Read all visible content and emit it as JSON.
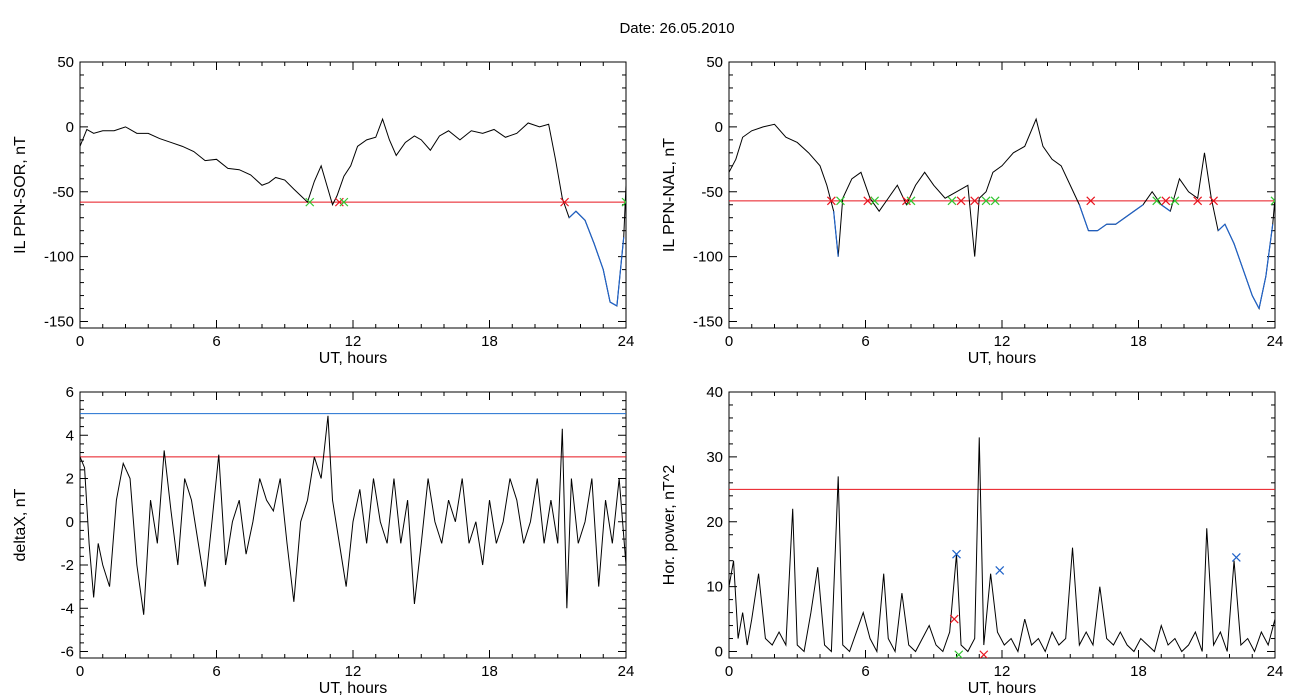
{
  "header": {
    "title": "Date:  26.05.2010"
  },
  "colors": {
    "trace": "#000000",
    "threshold": "#e8141e",
    "upper": "#1f6fd0",
    "below": "#1f62c8",
    "cross_red": "#e8141e",
    "cross_green": "#2fc62f",
    "cross_blue": "#1f62c8"
  },
  "chart_data": [
    {
      "type": "line",
      "xlabel": "UT, hours",
      "ylabel": "IL PPN-SOR, nT",
      "xlim": [
        0,
        24
      ],
      "ylim": [
        -155,
        50
      ],
      "xticks": [
        0,
        6,
        12,
        18,
        24
      ],
      "yticks": [
        50,
        0,
        -50,
        -100,
        -150
      ],
      "threshold": -58,
      "series": [
        {
          "x": [
            0,
            0.3,
            0.6,
            1.0,
            1.5,
            2.0,
            2.5,
            3.0,
            3.5,
            4.0,
            4.5,
            5.0,
            5.5,
            6.0,
            6.5,
            7.0,
            7.5,
            8.0,
            8.3,
            8.6,
            9.0,
            9.4,
            9.7,
            10.0,
            10.3,
            10.6,
            10.9,
            11.1,
            11.3,
            11.6,
            11.9,
            12.2,
            12.6,
            13.0,
            13.3,
            13.6,
            13.9,
            14.3,
            14.7,
            15.0,
            15.4,
            15.8,
            16.2,
            16.7,
            17.2,
            17.7,
            18.2,
            18.7,
            19.2,
            19.7,
            20.2,
            20.6,
            20.9,
            21.2,
            21.5,
            21.8,
            22.2,
            22.6,
            23.0,
            23.3,
            23.6,
            23.9,
            24.0
          ],
          "y": [
            -15,
            -2,
            -5,
            -3,
            -3,
            0,
            -5,
            -5,
            -9,
            -12,
            -15,
            -19,
            -26,
            -25,
            -32,
            -33,
            -37,
            -45,
            -43,
            -39,
            -41,
            -48,
            -53,
            -58,
            -42,
            -30,
            -48,
            -60,
            -53,
            -38,
            -30,
            -15,
            -10,
            -8,
            6,
            -10,
            -22,
            -12,
            -7,
            -10,
            -18,
            -7,
            -3,
            -10,
            -3,
            -5,
            -2,
            -8,
            -5,
            3,
            0,
            2,
            -25,
            -55,
            -70,
            -65,
            -72,
            -90,
            -110,
            -135,
            -138,
            -85,
            -45
          ]
        }
      ],
      "segments_below": true,
      "crossings": [
        {
          "x": 10.1,
          "y": -58,
          "color": "green"
        },
        {
          "x": 11.4,
          "y": -58,
          "color": "red"
        },
        {
          "x": 11.6,
          "y": -58,
          "color": "green"
        },
        {
          "x": 21.3,
          "y": -58,
          "color": "red"
        },
        {
          "x": 24.0,
          "y": -58,
          "color": "green"
        }
      ]
    },
    {
      "type": "line",
      "xlabel": "UT, hours",
      "ylabel": "IL PPN-NAL, nT",
      "xlim": [
        0,
        24
      ],
      "ylim": [
        -155,
        50
      ],
      "xticks": [
        0,
        6,
        12,
        18,
        24
      ],
      "yticks": [
        50,
        0,
        -50,
        -100,
        -150
      ],
      "threshold": -57,
      "series": [
        {
          "x": [
            0,
            0.3,
            0.6,
            1.0,
            1.5,
            2.0,
            2.5,
            3.0,
            3.5,
            4.0,
            4.3,
            4.6,
            4.8,
            5.0,
            5.4,
            5.8,
            6.2,
            6.6,
            7.0,
            7.4,
            7.8,
            8.2,
            8.6,
            9.0,
            9.5,
            10.0,
            10.5,
            10.8,
            11.0,
            11.3,
            11.6,
            12.0,
            12.5,
            13.0,
            13.5,
            13.8,
            14.2,
            14.6,
            15.0,
            15.4,
            15.8,
            16.2,
            16.6,
            17.0,
            17.4,
            17.8,
            18.2,
            18.6,
            19.0,
            19.4,
            19.8,
            20.2,
            20.6,
            20.9,
            21.2,
            21.5,
            21.8,
            22.2,
            22.6,
            23.0,
            23.3,
            23.6,
            23.9,
            24.0
          ],
          "y": [
            -35,
            -25,
            -8,
            -3,
            0,
            2,
            -8,
            -12,
            -20,
            -30,
            -45,
            -65,
            -100,
            -55,
            -40,
            -35,
            -55,
            -65,
            -55,
            -45,
            -60,
            -45,
            -35,
            -45,
            -55,
            -50,
            -45,
            -100,
            -55,
            -50,
            -35,
            -30,
            -20,
            -15,
            6,
            -15,
            -25,
            -30,
            -45,
            -60,
            -80,
            -80,
            -75,
            -75,
            -70,
            -65,
            -60,
            -50,
            -60,
            -65,
            -40,
            -50,
            -55,
            -20,
            -55,
            -80,
            -75,
            -90,
            -110,
            -130,
            -140,
            -115,
            -75,
            -55
          ]
        }
      ],
      "segments_below": true,
      "crossings": [
        {
          "x": 4.5,
          "y": -57,
          "color": "red"
        },
        {
          "x": 4.9,
          "y": -57,
          "color": "green"
        },
        {
          "x": 6.1,
          "y": -57,
          "color": "red"
        },
        {
          "x": 6.4,
          "y": -57,
          "color": "green"
        },
        {
          "x": 7.8,
          "y": -57,
          "color": "red"
        },
        {
          "x": 8.0,
          "y": -57,
          "color": "green"
        },
        {
          "x": 9.8,
          "y": -57,
          "color": "green"
        },
        {
          "x": 10.2,
          "y": -57,
          "color": "red"
        },
        {
          "x": 10.8,
          "y": -57,
          "color": "red"
        },
        {
          "x": 11.3,
          "y": -57,
          "color": "green"
        },
        {
          "x": 11.7,
          "y": -57,
          "color": "green"
        },
        {
          "x": 15.9,
          "y": -57,
          "color": "red"
        },
        {
          "x": 18.8,
          "y": -57,
          "color": "green"
        },
        {
          "x": 19.2,
          "y": -57,
          "color": "red"
        },
        {
          "x": 19.6,
          "y": -57,
          "color": "green"
        },
        {
          "x": 20.6,
          "y": -57,
          "color": "red"
        },
        {
          "x": 21.3,
          "y": -57,
          "color": "red"
        },
        {
          "x": 24.0,
          "y": -57,
          "color": "green"
        }
      ]
    },
    {
      "type": "line",
      "xlabel": "UT, hours",
      "ylabel": "deltaX, nT",
      "xlim": [
        0,
        24
      ],
      "ylim": [
        -6.3,
        6
      ],
      "xticks": [
        0,
        6,
        12,
        18,
        24
      ],
      "yticks": [
        6,
        4,
        2,
        0,
        -2,
        -4,
        -6
      ],
      "threshold_red": 3,
      "threshold_blue": 5,
      "series": [
        {
          "x": [
            0,
            0.2,
            0.4,
            0.6,
            0.8,
            1.0,
            1.3,
            1.6,
            1.9,
            2.2,
            2.5,
            2.8,
            3.1,
            3.4,
            3.7,
            4.0,
            4.3,
            4.6,
            4.9,
            5.2,
            5.5,
            5.8,
            6.1,
            6.4,
            6.7,
            7.0,
            7.3,
            7.6,
            7.9,
            8.2,
            8.5,
            8.8,
            9.1,
            9.4,
            9.7,
            10.0,
            10.3,
            10.6,
            10.9,
            11.1,
            11.4,
            11.7,
            12.0,
            12.3,
            12.6,
            12.9,
            13.2,
            13.5,
            13.8,
            14.1,
            14.4,
            14.7,
            15.0,
            15.3,
            15.6,
            15.9,
            16.2,
            16.5,
            16.8,
            17.1,
            17.4,
            17.7,
            18.0,
            18.3,
            18.6,
            18.9,
            19.2,
            19.5,
            19.8,
            20.1,
            20.4,
            20.7,
            21.0,
            21.2,
            21.4,
            21.6,
            21.9,
            22.2,
            22.5,
            22.8,
            23.1,
            23.4,
            23.7,
            24.0
          ],
          "y": [
            3,
            2.5,
            -1,
            -3.5,
            -1,
            -2,
            -3,
            1,
            2.7,
            2,
            -2,
            -4.3,
            1,
            -1,
            3.3,
            0.5,
            -2,
            2,
            1,
            -1,
            -3,
            0,
            3.1,
            -2,
            0,
            1,
            -1.5,
            0,
            2,
            1,
            0.5,
            2,
            -1,
            -3.7,
            0,
            1,
            3,
            2,
            4.9,
            1,
            -1,
            -3,
            0,
            1.5,
            -1,
            2,
            0,
            -1,
            2,
            -1,
            1,
            -3.8,
            -1,
            2,
            0,
            -1,
            1,
            0,
            2,
            -1,
            0,
            -2,
            1,
            -1,
            0,
            2,
            1,
            -1,
            0,
            2,
            -1,
            1,
            -1,
            4.3,
            -4,
            2,
            -1,
            0,
            2,
            -3,
            1,
            -1,
            2,
            -2
          ]
        }
      ]
    },
    {
      "type": "line",
      "xlabel": "UT, hours",
      "ylabel": "Hor. power, nT^2",
      "xlim": [
        0,
        24
      ],
      "ylim": [
        -1,
        40
      ],
      "xticks": [
        0,
        6,
        12,
        18,
        24
      ],
      "yticks": [
        40,
        30,
        20,
        10,
        0
      ],
      "threshold": 25,
      "series": [
        {
          "x": [
            0,
            0.2,
            0.4,
            0.6,
            0.8,
            1.0,
            1.3,
            1.6,
            1.9,
            2.2,
            2.5,
            2.8,
            3.0,
            3.3,
            3.6,
            3.9,
            4.2,
            4.5,
            4.8,
            5.0,
            5.3,
            5.6,
            5.9,
            6.2,
            6.5,
            6.8,
            7.0,
            7.3,
            7.6,
            7.9,
            8.2,
            8.5,
            8.8,
            9.1,
            9.4,
            9.7,
            10.0,
            10.2,
            10.5,
            10.8,
            11.0,
            11.2,
            11.5,
            11.8,
            12.1,
            12.4,
            12.7,
            13.0,
            13.3,
            13.6,
            13.9,
            14.2,
            14.5,
            14.8,
            15.1,
            15.4,
            15.7,
            16.0,
            16.3,
            16.6,
            16.9,
            17.2,
            17.5,
            17.8,
            18.1,
            18.4,
            18.7,
            19.0,
            19.3,
            19.6,
            19.9,
            20.2,
            20.5,
            20.8,
            21.0,
            21.3,
            21.6,
            21.9,
            22.2,
            22.5,
            22.8,
            23.1,
            23.4,
            23.7,
            24.0
          ],
          "y": [
            10,
            14,
            2,
            6,
            1,
            5,
            12,
            2,
            1,
            3,
            1,
            22,
            1,
            0,
            6,
            13,
            1,
            0,
            27,
            1,
            0,
            3,
            6,
            2,
            0,
            12,
            2,
            0,
            9,
            1,
            0,
            2,
            4,
            1,
            0,
            3,
            15,
            1,
            0,
            2,
            33,
            1,
            12,
            3,
            1,
            2,
            0,
            5,
            1,
            2,
            0,
            3,
            1,
            2,
            16,
            1,
            3,
            1,
            10,
            2,
            1,
            3,
            1,
            0,
            2,
            1,
            0,
            4,
            1,
            2,
            0,
            1,
            3,
            0,
            19,
            1,
            3,
            0,
            14,
            1,
            2,
            0,
            3,
            1,
            5
          ]
        }
      ],
      "crossings": [
        {
          "x": 10.0,
          "y": 15,
          "color": "blue"
        },
        {
          "x": 11.9,
          "y": 12.5,
          "color": "blue"
        },
        {
          "x": 22.3,
          "y": 14.5,
          "color": "blue"
        },
        {
          "x": 9.9,
          "y": 5,
          "color": "red"
        },
        {
          "x": 10.1,
          "y": -0.5,
          "color": "green"
        },
        {
          "x": 11.2,
          "y": -0.5,
          "color": "red"
        }
      ]
    }
  ]
}
